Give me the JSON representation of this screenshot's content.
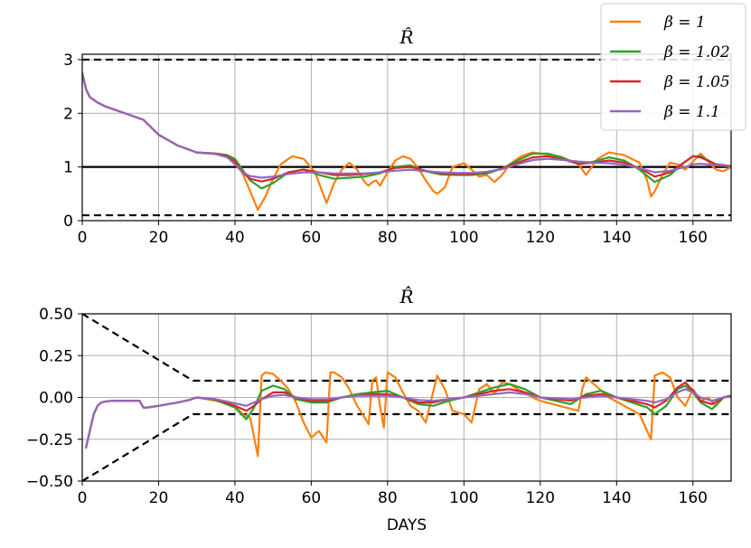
{
  "chart_data": [
    {
      "type": "line",
      "title": "R̂",
      "xlabel": "",
      "ylabel": "",
      "xlim": [
        0,
        170
      ],
      "ylim": [
        0,
        3.1
      ],
      "xticks": [
        0,
        20,
        40,
        60,
        80,
        100,
        120,
        140,
        160
      ],
      "yticks": [
        0,
        1,
        2,
        3
      ],
      "grid": true,
      "legend_position": "top-right",
      "reference_lines": [
        {
          "style": "dashed",
          "color": "#000000",
          "x": [
            0,
            170
          ],
          "y": [
            3,
            3
          ]
        },
        {
          "style": "dashed",
          "color": "#000000",
          "x": [
            0,
            170
          ],
          "y": [
            0.1,
            0.1
          ]
        },
        {
          "style": "solid",
          "color": "#000000",
          "x": [
            0,
            170
          ],
          "y": [
            1,
            1
          ]
        }
      ],
      "series": [
        {
          "name": "β = 1",
          "color": "#ff7f0e",
          "x": [
            0,
            1,
            2,
            4,
            6,
            10,
            16,
            20,
            25,
            30,
            35,
            38,
            40,
            42,
            44,
            46,
            48,
            50,
            52,
            55,
            58,
            61,
            64,
            66,
            68,
            70,
            72,
            74,
            75,
            76,
            77,
            78,
            80,
            82,
            84,
            86,
            88,
            90,
            92,
            93,
            95,
            97,
            100,
            102,
            104,
            106,
            108,
            110,
            112,
            115,
            118,
            120,
            125,
            130,
            132,
            135,
            138,
            142,
            146,
            148,
            149,
            150,
            152,
            154,
            156,
            158,
            160,
            162,
            164,
            166,
            168,
            170
          ],
          "y": [
            2.75,
            2.45,
            2.3,
            2.2,
            2.13,
            2.03,
            1.88,
            1.6,
            1.4,
            1.27,
            1.25,
            1.22,
            1.12,
            0.88,
            0.55,
            0.2,
            0.45,
            0.78,
            1.05,
            1.2,
            1.15,
            0.9,
            0.33,
            0.7,
            0.95,
            1.08,
            0.95,
            0.72,
            0.65,
            0.72,
            0.75,
            0.65,
            0.9,
            1.12,
            1.2,
            1.15,
            0.98,
            0.75,
            0.55,
            0.5,
            0.62,
            1.0,
            1.07,
            0.95,
            0.82,
            0.85,
            0.72,
            0.85,
            1.05,
            1.2,
            1.27,
            1.25,
            1.2,
            1.05,
            0.85,
            1.15,
            1.27,
            1.22,
            1.08,
            0.75,
            0.45,
            0.55,
            0.85,
            1.08,
            1.05,
            0.95,
            1.1,
            1.25,
            1.1,
            0.95,
            0.92,
            1.0
          ]
        },
        {
          "name": "β = 1.02",
          "color": "#2ca02c",
          "x": [
            0,
            1,
            2,
            4,
            6,
            10,
            16,
            20,
            25,
            30,
            35,
            38,
            40,
            42,
            44,
            47,
            50,
            54,
            58,
            62,
            66,
            70,
            74,
            78,
            82,
            86,
            90,
            94,
            98,
            102,
            106,
            110,
            114,
            118,
            122,
            126,
            130,
            134,
            138,
            142,
            146,
            150,
            154,
            158,
            160,
            162,
            166,
            170
          ],
          "y": [
            2.75,
            2.45,
            2.3,
            2.2,
            2.13,
            2.03,
            1.88,
            1.6,
            1.4,
            1.27,
            1.25,
            1.22,
            1.15,
            0.95,
            0.75,
            0.6,
            0.7,
            0.9,
            0.95,
            0.85,
            0.78,
            0.8,
            0.82,
            0.88,
            1.0,
            1.03,
            0.92,
            0.86,
            0.85,
            0.85,
            0.88,
            0.97,
            1.12,
            1.25,
            1.25,
            1.17,
            1.05,
            1.1,
            1.18,
            1.12,
            0.95,
            0.72,
            0.85,
            1.1,
            1.2,
            1.2,
            1.05,
            1.0
          ]
        },
        {
          "name": "β = 1.05",
          "color": "#d62728",
          "x": [
            0,
            1,
            2,
            4,
            6,
            10,
            16,
            20,
            25,
            30,
            35,
            38,
            40,
            42,
            44,
            47,
            50,
            54,
            58,
            62,
            66,
            70,
            74,
            78,
            82,
            86,
            90,
            94,
            98,
            102,
            106,
            110,
            114,
            118,
            122,
            126,
            130,
            134,
            138,
            142,
            146,
            150,
            154,
            158,
            160,
            162,
            166,
            170
          ],
          "y": [
            2.75,
            2.45,
            2.3,
            2.2,
            2.13,
            2.03,
            1.88,
            1.6,
            1.4,
            1.27,
            1.25,
            1.2,
            1.1,
            0.9,
            0.78,
            0.73,
            0.78,
            0.9,
            0.95,
            0.9,
            0.85,
            0.85,
            0.87,
            0.9,
            0.98,
            1.0,
            0.93,
            0.88,
            0.87,
            0.87,
            0.9,
            0.97,
            1.08,
            1.18,
            1.2,
            1.14,
            1.06,
            1.08,
            1.12,
            1.08,
            0.98,
            0.82,
            0.9,
            1.1,
            1.2,
            1.18,
            1.05,
            1.02
          ]
        },
        {
          "name": "β = 1.1",
          "color": "#9467bd",
          "x": [
            0,
            1,
            2,
            4,
            6,
            10,
            16,
            20,
            25,
            30,
            35,
            38,
            40,
            42,
            44,
            47,
            50,
            54,
            58,
            62,
            66,
            70,
            74,
            78,
            82,
            86,
            90,
            94,
            98,
            102,
            106,
            110,
            114,
            118,
            122,
            126,
            130,
            134,
            138,
            142,
            146,
            150,
            154,
            158,
            160,
            162,
            166,
            170
          ],
          "y": [
            2.75,
            2.45,
            2.3,
            2.2,
            2.13,
            2.03,
            1.88,
            1.6,
            1.4,
            1.27,
            1.24,
            1.18,
            1.05,
            0.9,
            0.83,
            0.8,
            0.82,
            0.87,
            0.9,
            0.9,
            0.88,
            0.88,
            0.88,
            0.9,
            0.93,
            0.95,
            0.92,
            0.9,
            0.89,
            0.89,
            0.91,
            0.96,
            1.05,
            1.13,
            1.15,
            1.13,
            1.1,
            1.08,
            1.07,
            1.04,
            0.98,
            0.9,
            0.93,
            1.0,
            1.05,
            1.06,
            1.03,
            1.02
          ]
        }
      ]
    },
    {
      "type": "line",
      "title": "R̂̇",
      "xlabel": "DAYS",
      "ylabel": "",
      "xlim": [
        0,
        170
      ],
      "ylim": [
        -0.5,
        0.5
      ],
      "xticks": [
        0,
        20,
        40,
        60,
        80,
        100,
        120,
        140,
        160
      ],
      "yticks": [
        -0.5,
        -0.25,
        0.0,
        0.25,
        0.5
      ],
      "ytick_labels": [
        "−0.50",
        "−0.25",
        "0.00",
        "0.25",
        "0.50"
      ],
      "grid": true,
      "reference_lines": [
        {
          "style": "dashed",
          "color": "#000000",
          "x": [
            0,
            29,
            170
          ],
          "y": [
            0.5,
            0.1,
            0.1
          ]
        },
        {
          "style": "dashed",
          "color": "#000000",
          "x": [
            0,
            29,
            170
          ],
          "y": [
            -0.5,
            -0.1,
            -0.1
          ]
        }
      ],
      "series": [
        {
          "name": "β = 1",
          "color": "#ff7f0e",
          "x": [
            1,
            2,
            3,
            4,
            5,
            6,
            8,
            10,
            12,
            15,
            16,
            17,
            20,
            25,
            28,
            30,
            35,
            40,
            42,
            44,
            46,
            47,
            48,
            50,
            52,
            54,
            56,
            58,
            60,
            62,
            64,
            65,
            66,
            68,
            70,
            72,
            74,
            75,
            76,
            77,
            78,
            79,
            80,
            82,
            84,
            86,
            88,
            90,
            92,
            93,
            95,
            97,
            100,
            102,
            104,
            106,
            108,
            110,
            112,
            114,
            116,
            118,
            120,
            125,
            130,
            131,
            132,
            134,
            138,
            142,
            146,
            149,
            150,
            152,
            154,
            156,
            158,
            160,
            162,
            164,
            166,
            168,
            170
          ],
          "y": [
            -0.3,
            -0.2,
            -0.1,
            -0.05,
            -0.03,
            -0.025,
            -0.02,
            -0.02,
            -0.02,
            -0.02,
            -0.06,
            -0.06,
            -0.05,
            -0.03,
            -0.015,
            0.0,
            -0.02,
            -0.05,
            -0.1,
            -0.12,
            -0.35,
            0.13,
            0.15,
            0.14,
            0.1,
            0.05,
            -0.03,
            -0.15,
            -0.24,
            -0.2,
            -0.27,
            0.15,
            0.15,
            0.12,
            0.05,
            -0.05,
            -0.12,
            -0.16,
            0.1,
            0.12,
            -0.05,
            -0.18,
            0.15,
            0.12,
            0.03,
            -0.05,
            -0.08,
            -0.15,
            0.04,
            0.13,
            0.05,
            -0.08,
            -0.1,
            -0.15,
            0.05,
            0.08,
            0.02,
            0.09,
            0.08,
            0.05,
            0.03,
            0.0,
            -0.02,
            -0.05,
            -0.08,
            0.05,
            0.12,
            0.08,
            0.0,
            -0.05,
            -0.1,
            -0.25,
            0.13,
            0.15,
            0.12,
            0.0,
            -0.05,
            0.05,
            -0.02,
            0.0,
            -0.05,
            0.0,
            0.01
          ]
        },
        {
          "name": "β = 1.02",
          "color": "#2ca02c",
          "x": [
            1,
            2,
            3,
            4,
            5,
            6,
            8,
            10,
            12,
            15,
            16,
            17,
            20,
            25,
            28,
            30,
            35,
            40,
            43,
            45,
            47,
            50,
            53,
            56,
            60,
            64,
            68,
            72,
            76,
            80,
            84,
            88,
            92,
            96,
            100,
            104,
            108,
            112,
            116,
            120,
            124,
            128,
            132,
            136,
            140,
            144,
            148,
            150,
            153,
            156,
            158,
            160,
            162,
            165,
            168,
            170
          ],
          "y": [
            -0.3,
            -0.2,
            -0.1,
            -0.05,
            -0.03,
            -0.025,
            -0.02,
            -0.02,
            -0.02,
            -0.02,
            -0.06,
            -0.06,
            -0.05,
            -0.03,
            -0.015,
            0.0,
            -0.015,
            -0.06,
            -0.13,
            -0.06,
            0.04,
            0.07,
            0.05,
            -0.01,
            -0.03,
            -0.03,
            0.0,
            0.02,
            0.03,
            0.04,
            0.0,
            -0.04,
            -0.05,
            -0.02,
            0.0,
            0.03,
            0.06,
            0.08,
            0.05,
            0.0,
            -0.02,
            -0.04,
            0.02,
            0.04,
            0.0,
            -0.03,
            -0.06,
            -0.1,
            -0.05,
            0.05,
            0.07,
            0.03,
            -0.03,
            -0.07,
            0.0,
            0.01
          ]
        },
        {
          "name": "β = 1.05",
          "color": "#d62728",
          "x": [
            1,
            2,
            3,
            4,
            5,
            6,
            8,
            10,
            12,
            15,
            16,
            17,
            20,
            25,
            28,
            30,
            35,
            40,
            43,
            45,
            47,
            50,
            53,
            56,
            60,
            64,
            68,
            72,
            76,
            80,
            84,
            88,
            92,
            96,
            100,
            104,
            108,
            112,
            116,
            120,
            124,
            128,
            132,
            136,
            140,
            144,
            148,
            150,
            153,
            156,
            158,
            160,
            162,
            165,
            168,
            170
          ],
          "y": [
            -0.3,
            -0.2,
            -0.1,
            -0.05,
            -0.03,
            -0.025,
            -0.02,
            -0.02,
            -0.02,
            -0.02,
            -0.06,
            -0.06,
            -0.05,
            -0.03,
            -0.015,
            0.0,
            -0.012,
            -0.05,
            -0.08,
            -0.05,
            -0.01,
            0.03,
            0.03,
            0.0,
            -0.02,
            -0.02,
            0.0,
            0.01,
            0.02,
            0.02,
            0.0,
            -0.03,
            -0.03,
            -0.01,
            0.0,
            0.02,
            0.04,
            0.05,
            0.03,
            0.0,
            -0.01,
            -0.02,
            0.01,
            0.02,
            0.0,
            -0.02,
            -0.04,
            -0.06,
            -0.02,
            0.06,
            0.09,
            0.04,
            -0.02,
            -0.04,
            0.0,
            0.01
          ]
        },
        {
          "name": "β = 1.1",
          "color": "#9467bd",
          "x": [
            1,
            2,
            3,
            4,
            5,
            6,
            8,
            10,
            12,
            15,
            16,
            17,
            20,
            25,
            28,
            30,
            35,
            40,
            43,
            45,
            47,
            50,
            53,
            56,
            60,
            64,
            68,
            72,
            76,
            80,
            84,
            88,
            92,
            96,
            100,
            104,
            108,
            112,
            116,
            120,
            124,
            128,
            132,
            136,
            140,
            144,
            148,
            150,
            153,
            156,
            158,
            160,
            162,
            165,
            168,
            170
          ],
          "y": [
            -0.3,
            -0.2,
            -0.1,
            -0.05,
            -0.03,
            -0.025,
            -0.02,
            -0.02,
            -0.02,
            -0.02,
            -0.06,
            -0.06,
            -0.05,
            -0.03,
            -0.015,
            0.0,
            -0.01,
            -0.035,
            -0.05,
            -0.03,
            -0.01,
            0.01,
            0.015,
            0.0,
            -0.01,
            -0.01,
            0.0,
            0.01,
            0.01,
            0.01,
            0.0,
            -0.015,
            -0.02,
            -0.01,
            0.0,
            0.01,
            0.02,
            0.03,
            0.02,
            0.0,
            -0.005,
            -0.01,
            0.0,
            0.01,
            0.0,
            -0.01,
            -0.02,
            -0.03,
            -0.01,
            0.03,
            0.05,
            0.03,
            0.0,
            -0.02,
            0.0,
            0.005
          ]
        }
      ]
    }
  ]
}
